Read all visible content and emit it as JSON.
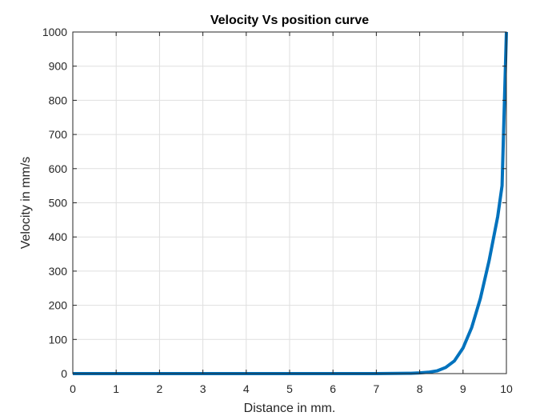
{
  "chart_data": {
    "type": "line",
    "title": "Velocity Vs position curve",
    "xlabel": "Distance in mm.",
    "ylabel": "Velocity in mm/s",
    "xlim": [
      0,
      10
    ],
    "ylim": [
      0,
      1000
    ],
    "xticks": [
      0,
      1,
      2,
      3,
      4,
      5,
      6,
      7,
      8,
      9,
      10
    ],
    "yticks": [
      0,
      100,
      200,
      300,
      400,
      500,
      600,
      700,
      800,
      900,
      1000
    ],
    "grid": true,
    "line_color": "#0072BD",
    "grid_color": "#DFDFDF",
    "axis_color": "#262626",
    "series": [
      {
        "x": [
          0,
          1,
          2,
          3,
          4,
          5,
          6,
          7,
          7.8,
          8.0,
          8.2,
          8.4,
          8.6,
          8.8,
          9.0,
          9.2,
          9.4,
          9.6,
          9.8,
          9.9,
          10.0
        ],
        "y": [
          0,
          0,
          0,
          0,
          0,
          0,
          0,
          0,
          1,
          2,
          4,
          8,
          18,
          37,
          75,
          135,
          220,
          330,
          460,
          550,
          1000
        ]
      }
    ]
  }
}
